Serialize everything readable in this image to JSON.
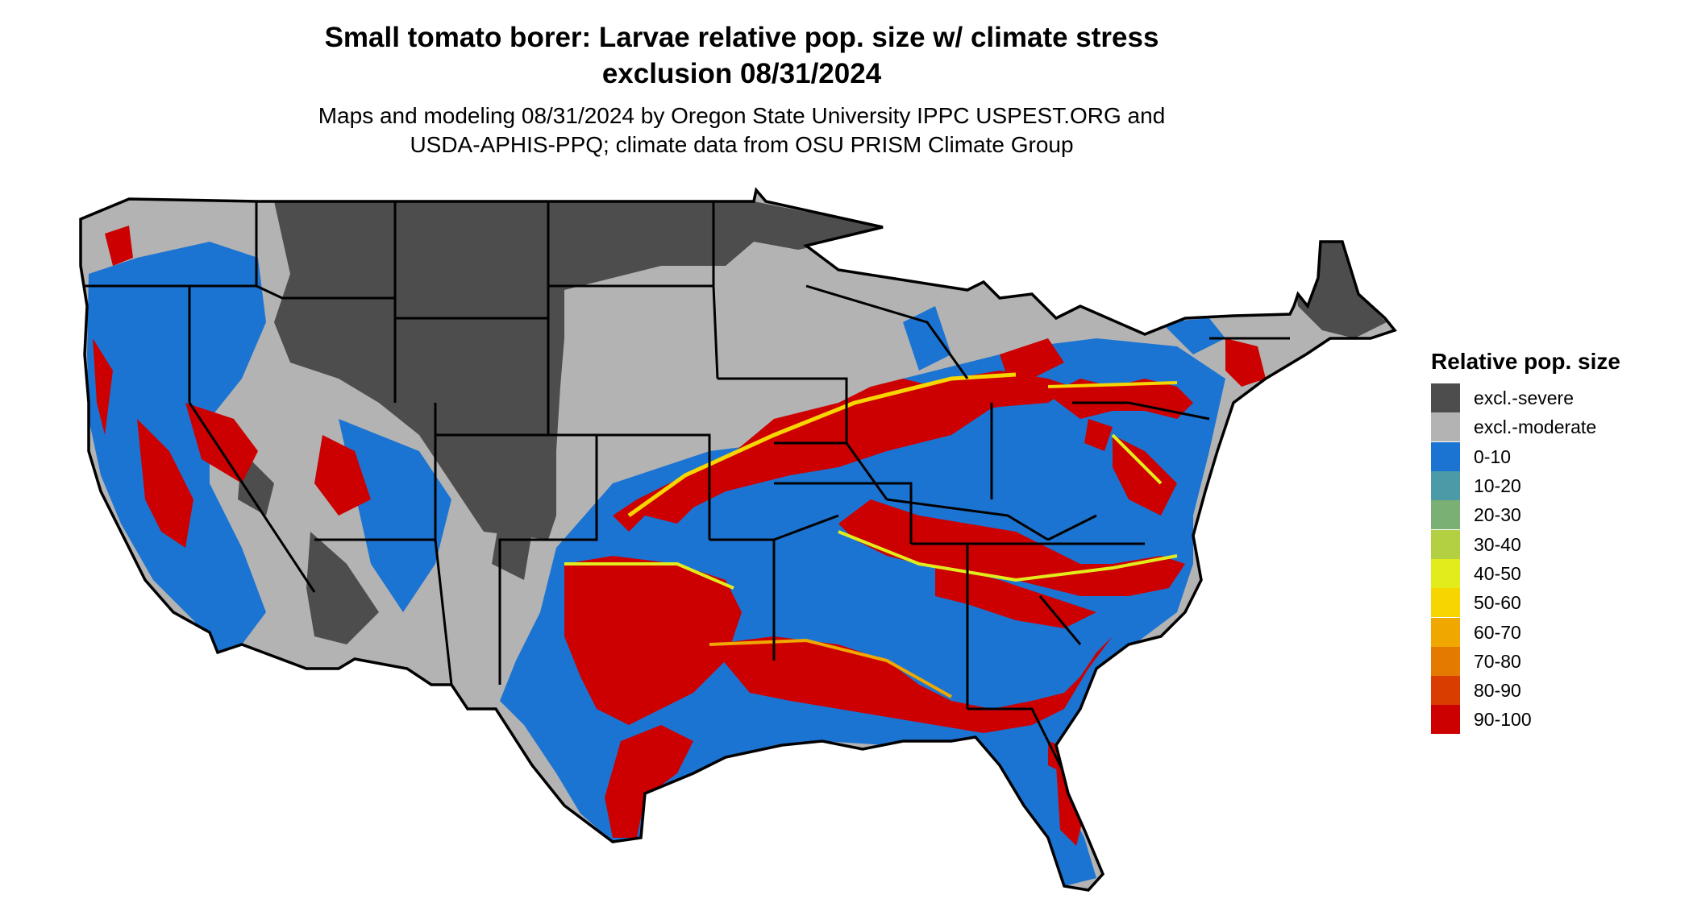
{
  "header": {
    "title_line1": "Small tomato borer: Larvae relative pop. size w/ climate stress",
    "title_line2": "exclusion 08/31/2024",
    "subtitle_line1": "Maps and modeling 08/31/2024 by Oregon State University IPPC USPEST.ORG and",
    "subtitle_line2": "USDA-APHIS-PPQ; climate data from OSU PRISM Climate Group"
  },
  "map": {
    "region": "Contiguous United States",
    "background_color": "#ffffff",
    "border_color": "#000000"
  },
  "legend": {
    "title": "Relative pop. size",
    "items": [
      {
        "label": "excl.-severe",
        "color": "#4d4d4d"
      },
      {
        "label": "excl.-moderate",
        "color": "#b3b3b3"
      },
      {
        "label": "0-10",
        "color": "#1c74d2"
      },
      {
        "label": "10-20",
        "color": "#4b9aa7"
      },
      {
        "label": "20-30",
        "color": "#7ab073"
      },
      {
        "label": "30-40",
        "color": "#b2d042"
      },
      {
        "label": "40-50",
        "color": "#e2ec1d"
      },
      {
        "label": "50-60",
        "color": "#f7d600"
      },
      {
        "label": "60-70",
        "color": "#f0a800"
      },
      {
        "label": "70-80",
        "color": "#e47a00"
      },
      {
        "label": "80-90",
        "color": "#d93d00"
      },
      {
        "label": "90-100",
        "color": "#cc0000"
      }
    ]
  }
}
